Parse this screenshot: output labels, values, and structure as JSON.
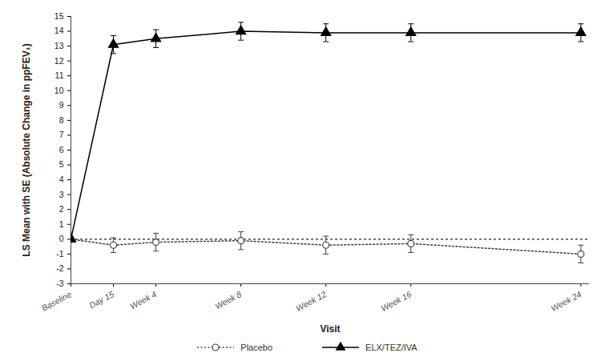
{
  "chart_data": {
    "type": "line",
    "xlabel": "Visit",
    "ylabel": "LS Mean with SE (Absolute Change in ppFEV₁)",
    "x": [
      0,
      2,
      4,
      8,
      12,
      16,
      24
    ],
    "xlim": [
      0,
      24.4
    ],
    "xticks": [
      {
        "value": 0,
        "label": "Baseline"
      },
      {
        "value": 2,
        "label": "Day 15"
      },
      {
        "value": 4,
        "label": "Week 4"
      },
      {
        "value": 8,
        "label": "Week 8"
      },
      {
        "value": 12,
        "label": "Week 12"
      },
      {
        "value": 16,
        "label": "Week 16"
      },
      {
        "value": 24,
        "label": "Week 24"
      }
    ],
    "ylim": [
      -3,
      15
    ],
    "yticks": [
      -3,
      -2,
      -1,
      0,
      1,
      2,
      3,
      4,
      5,
      6,
      7,
      8,
      9,
      10,
      11,
      12,
      13,
      14,
      15
    ],
    "reference_line": 0,
    "legend": "bottom",
    "series": [
      {
        "name": "Placebo",
        "color": "#404040",
        "marker": "circle",
        "line_style": "dotted",
        "values": [
          0,
          -0.4,
          -0.2,
          -0.1,
          -0.4,
          -0.3,
          -1.0
        ],
        "se": [
          0,
          0.5,
          0.6,
          0.6,
          0.6,
          0.6,
          0.6
        ]
      },
      {
        "name": "ELX/TEZ/IVA",
        "color": "#000000",
        "marker": "triangle",
        "line_style": "solid",
        "values": [
          0,
          13.1,
          13.5,
          14.0,
          13.9,
          13.9,
          13.9
        ],
        "se": [
          0,
          0.6,
          0.6,
          0.6,
          0.6,
          0.6,
          0.6
        ]
      }
    ]
  }
}
